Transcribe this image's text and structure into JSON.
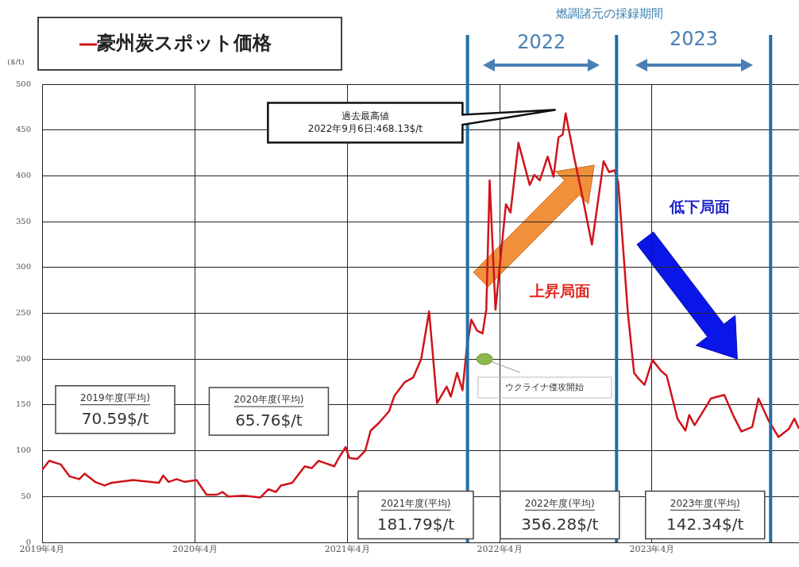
{
  "chart_data": {
    "type": "line",
    "ylabel": "($/t)",
    "legend": "top left",
    "grid": true,
    "series": [
      {
        "name": "豪州炭スポット価格",
        "color": "#d0131b",
        "x": [
          "2019-04-01",
          "2019-04-18",
          "2019-05-16",
          "2019-06-06",
          "2019-06-29",
          "2019-07-12",
          "2019-08-06",
          "2019-08-29",
          "2019-09-14",
          "2019-11-05",
          "2020-01-06",
          "2020-01-16",
          "2020-01-29",
          "2020-02-17",
          "2020-03-08",
          "2020-04-05",
          "2020-04-29",
          "2020-05-24",
          "2020-06-06",
          "2020-06-20",
          "2020-07-28",
          "2020-09-05",
          "2020-09-24",
          "2020-10-12",
          "2020-10-24",
          "2020-11-20",
          "2020-12-20",
          "2021-01-06",
          "2021-01-22",
          "2021-02-04",
          "2021-03-01",
          "2021-03-09",
          "2021-03-28",
          "2021-04-06",
          "2021-04-25",
          "2021-05-14",
          "2021-05-27",
          "2021-06-15",
          "2021-07-10",
          "2021-07-23",
          "2021-08-17",
          "2021-09-06",
          "2021-09-25",
          "2021-10-14",
          "2021-11-02",
          "2021-11-25",
          "2021-12-05",
          "2021-12-20",
          "2022-01-02",
          "2022-01-12",
          "2022-01-23",
          "2022-02-06",
          "2022-02-19",
          "2022-02-28",
          "2022-03-08",
          "2022-03-22",
          "2022-04-16",
          "2022-04-27",
          "2022-05-16",
          "2022-06-12",
          "2022-06-23",
          "2022-07-06",
          "2022-07-25",
          "2022-08-08",
          "2022-08-20",
          "2022-08-30",
          "2022-09-06",
          "2022-09-21",
          "2022-09-27",
          "2022-10-16",
          "2022-11-08",
          "2022-12-06",
          "2022-12-19",
          "2023-01-01",
          "2023-01-10",
          "2023-01-20",
          "2023-02-02",
          "2023-02-17",
          "2023-02-27",
          "2023-03-14",
          "2023-04-02",
          "2023-04-23",
          "2023-05-06",
          "2023-06-01",
          "2023-06-20",
          "2023-06-29",
          "2023-07-12",
          "2023-07-27",
          "2023-08-20",
          "2023-09-21",
          "2023-10-12",
          "2023-11-01",
          "2023-11-27",
          "2023-12-12",
          "2024-01-05",
          "2024-01-29",
          "2024-02-23",
          "2024-03-07",
          "2024-03-18"
        ],
        "values": [
          79,
          89,
          85,
          72,
          69,
          75,
          66,
          62,
          65,
          68,
          65,
          73,
          66,
          69,
          66,
          68,
          52,
          52,
          55,
          50,
          51,
          49,
          58,
          55,
          62,
          65,
          83,
          81,
          89,
          87,
          83,
          90,
          104,
          92,
          91,
          100,
          122,
          130,
          143,
          160,
          175,
          180,
          200,
          252,
          152,
          170,
          159,
          185,
          166,
          211,
          243,
          231,
          228,
          254,
          395,
          254,
          369,
          360,
          436,
          390,
          401,
          395,
          421,
          399,
          442,
          445,
          468.13,
          433,
          419,
          378,
          325,
          416,
          404,
          406,
          393,
          332,
          251,
          185,
          179,
          172,
          199,
          187,
          182,
          135,
          122,
          139,
          128,
          139,
          157,
          161,
          139,
          121,
          126,
          157,
          133,
          115,
          124,
          135,
          124
        ]
      }
    ],
    "xlim": [
      "2019-04-01",
      "2024-03-18"
    ],
    "xticks": [
      {
        "value": "2019-04",
        "label": "2019年4月"
      },
      {
        "value": "2020-04",
        "label": "2020年4月"
      },
      {
        "value": "2021-04",
        "label": "2021年4月"
      },
      {
        "value": "2022-04",
        "label": "2022年4月"
      },
      {
        "value": "2023-04",
        "label": "2023年4月"
      }
    ],
    "ylim": [
      0,
      500
    ],
    "yticks": [
      0,
      50,
      100,
      150,
      200,
      250,
      300,
      350,
      400,
      450,
      500
    ],
    "ref_lines": [
      {
        "axis": "x",
        "value": "2022-01-14",
        "color": "#1f6fa8"
      },
      {
        "axis": "x",
        "value": "2023-01-06",
        "color": "#1f6fa8"
      },
      {
        "axis": "x",
        "value": "2024-01-10",
        "color": "#1f6fa8"
      }
    ],
    "annotations": [
      "燃調諸元の採録期間",
      "過去最高値\n2022年9月6日:468.13$/t",
      {
        "text": "ウクライナ侵攻開始",
        "x": "2022-02-24",
        "y": 200
      },
      "上昇局面",
      "低下局面",
      "2019年度(平均)\n70.59$/t",
      "2020年度(平均)\n65.76$/t",
      "2021年度(平均)\n181.79$/t",
      "2022年度(平均)\n356.28$/t",
      "2023年度(平均)\n142.34$/t",
      "2022",
      "2023"
    ]
  }
}
